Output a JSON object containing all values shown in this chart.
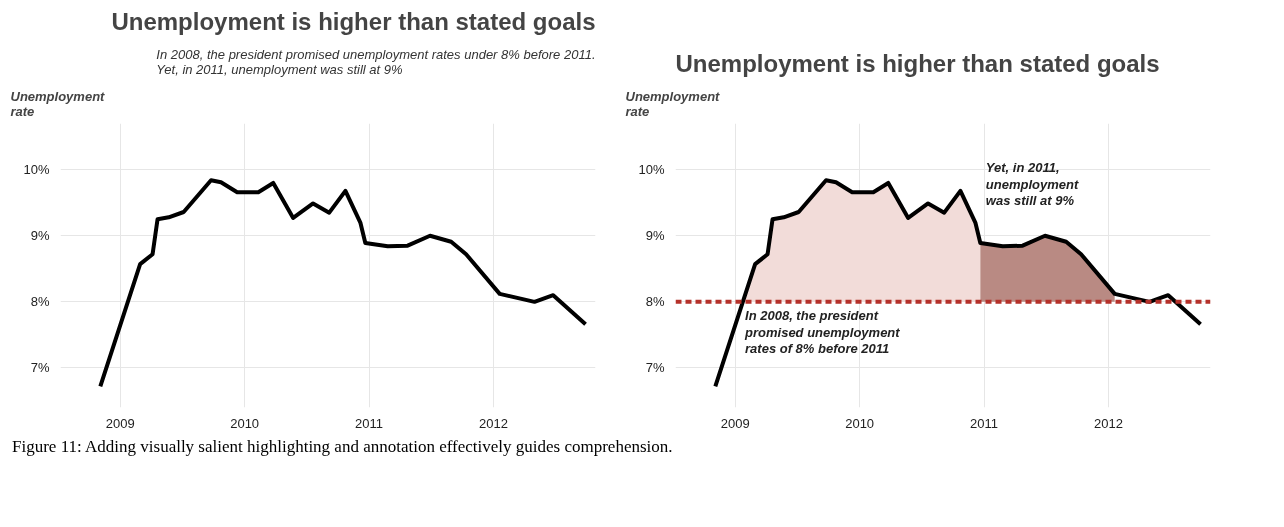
{
  "chart_data": [
    {
      "type": "line",
      "title": "Unemployment is higher than stated goals",
      "subtitle": "In 2008, the president promised unemployment rates under 8% before 2011.\nYet, in 2011, unemployment was still at 9%",
      "ylabel": "Unemployment\nrate",
      "series": [
        {
          "color": "#000000",
          "x": [
            2008.84,
            2009.16,
            2009.26,
            2009.3,
            2009.39,
            2009.51,
            2009.73,
            2009.81,
            2009.94,
            2010.11,
            2010.23,
            2010.39,
            2010.55,
            2010.68,
            2010.81,
            2010.93,
            2010.97,
            2011.15,
            2011.31,
            2011.49,
            2011.66,
            2011.78,
            2012.05,
            2012.33,
            2012.48,
            2012.74
          ],
          "values": [
            6.72,
            8.57,
            8.72,
            9.25,
            9.28,
            9.36,
            9.84,
            9.81,
            9.66,
            9.66,
            9.8,
            9.27,
            9.49,
            9.35,
            9.68,
            9.2,
            8.89,
            8.84,
            8.85,
            9.0,
            8.91,
            8.72,
            8.12,
            8.0,
            8.1,
            7.66
          ]
        }
      ],
      "xlim": [
        2008.52,
        2012.82
      ],
      "xticks": [
        2009,
        2010,
        2011,
        2012
      ],
      "ylim": [
        6.4,
        10.7
      ],
      "yticks": [
        {
          "value": 7,
          "label": "7%"
        },
        {
          "value": 8,
          "label": "8%"
        },
        {
          "value": 9,
          "label": "9%"
        },
        {
          "value": 10,
          "label": "10%"
        }
      ],
      "grid": true,
      "line_style": "solid"
    },
    {
      "type": "line",
      "title": "Unemployment is higher than stated goals",
      "ylabel": "Unemployment\nrate",
      "series": [
        {
          "type": "area",
          "color": "#f2dcd9",
          "x": [
            2009.06,
            2009.16,
            2009.26,
            2009.3,
            2009.39,
            2009.51,
            2009.73,
            2009.81,
            2009.94,
            2010.11,
            2010.23,
            2010.39,
            2010.55,
            2010.68,
            2010.81,
            2010.93,
            2010.97
          ],
          "values": [
            8.0,
            8.57,
            8.72,
            9.25,
            9.28,
            9.36,
            9.84,
            9.81,
            9.66,
            9.66,
            9.8,
            9.27,
            9.49,
            9.35,
            9.68,
            9.2,
            8.89
          ]
        },
        {
          "type": "area",
          "color": "#b98a83",
          "x": [
            2010.97,
            2011.15,
            2011.31,
            2011.49,
            2011.66,
            2011.78,
            2012.05
          ],
          "values": [
            8.89,
            8.84,
            8.85,
            9.0,
            8.91,
            8.72,
            8.12
          ]
        },
        {
          "color": "#000000",
          "x": [
            2008.84,
            2009.16,
            2009.26,
            2009.3,
            2009.39,
            2009.51,
            2009.73,
            2009.81,
            2009.94,
            2010.11,
            2010.23,
            2010.39,
            2010.55,
            2010.68,
            2010.81,
            2010.93,
            2010.97,
            2011.15,
            2011.31,
            2011.49,
            2011.66,
            2011.78,
            2012.05,
            2012.33,
            2012.48,
            2012.74
          ],
          "values": [
            6.72,
            8.57,
            8.72,
            9.25,
            9.28,
            9.36,
            9.84,
            9.81,
            9.66,
            9.66,
            9.8,
            9.27,
            9.49,
            9.35,
            9.68,
            9.2,
            8.89,
            8.84,
            8.85,
            9.0,
            8.91,
            8.72,
            8.12,
            8.0,
            8.1,
            7.66
          ]
        }
      ],
      "ref_lines": [
        {
          "axis": "y",
          "value": 8,
          "color": "#b5312a",
          "line_style": "dashed"
        }
      ],
      "annotations": [
        "Yet, in 2011,\nunemployment\nwas still at 9%",
        "In 2008, the president\npromised unemployment\nrates of 8% before 2011",
        "Figure 11:  Adding visually salient highlighting and annotation effectively guides comprehension."
      ],
      "xlim": [
        2008.52,
        2012.82
      ],
      "xticks": [
        2009,
        2010,
        2011,
        2012
      ],
      "ylim": [
        6.4,
        10.7
      ],
      "yticks": [
        {
          "value": 7,
          "label": "7%"
        },
        {
          "value": 8,
          "label": "8%"
        },
        {
          "value": 9,
          "label": "9%"
        },
        {
          "value": 10,
          "label": "10%"
        }
      ],
      "grid": true,
      "line_style": "solid"
    }
  ]
}
